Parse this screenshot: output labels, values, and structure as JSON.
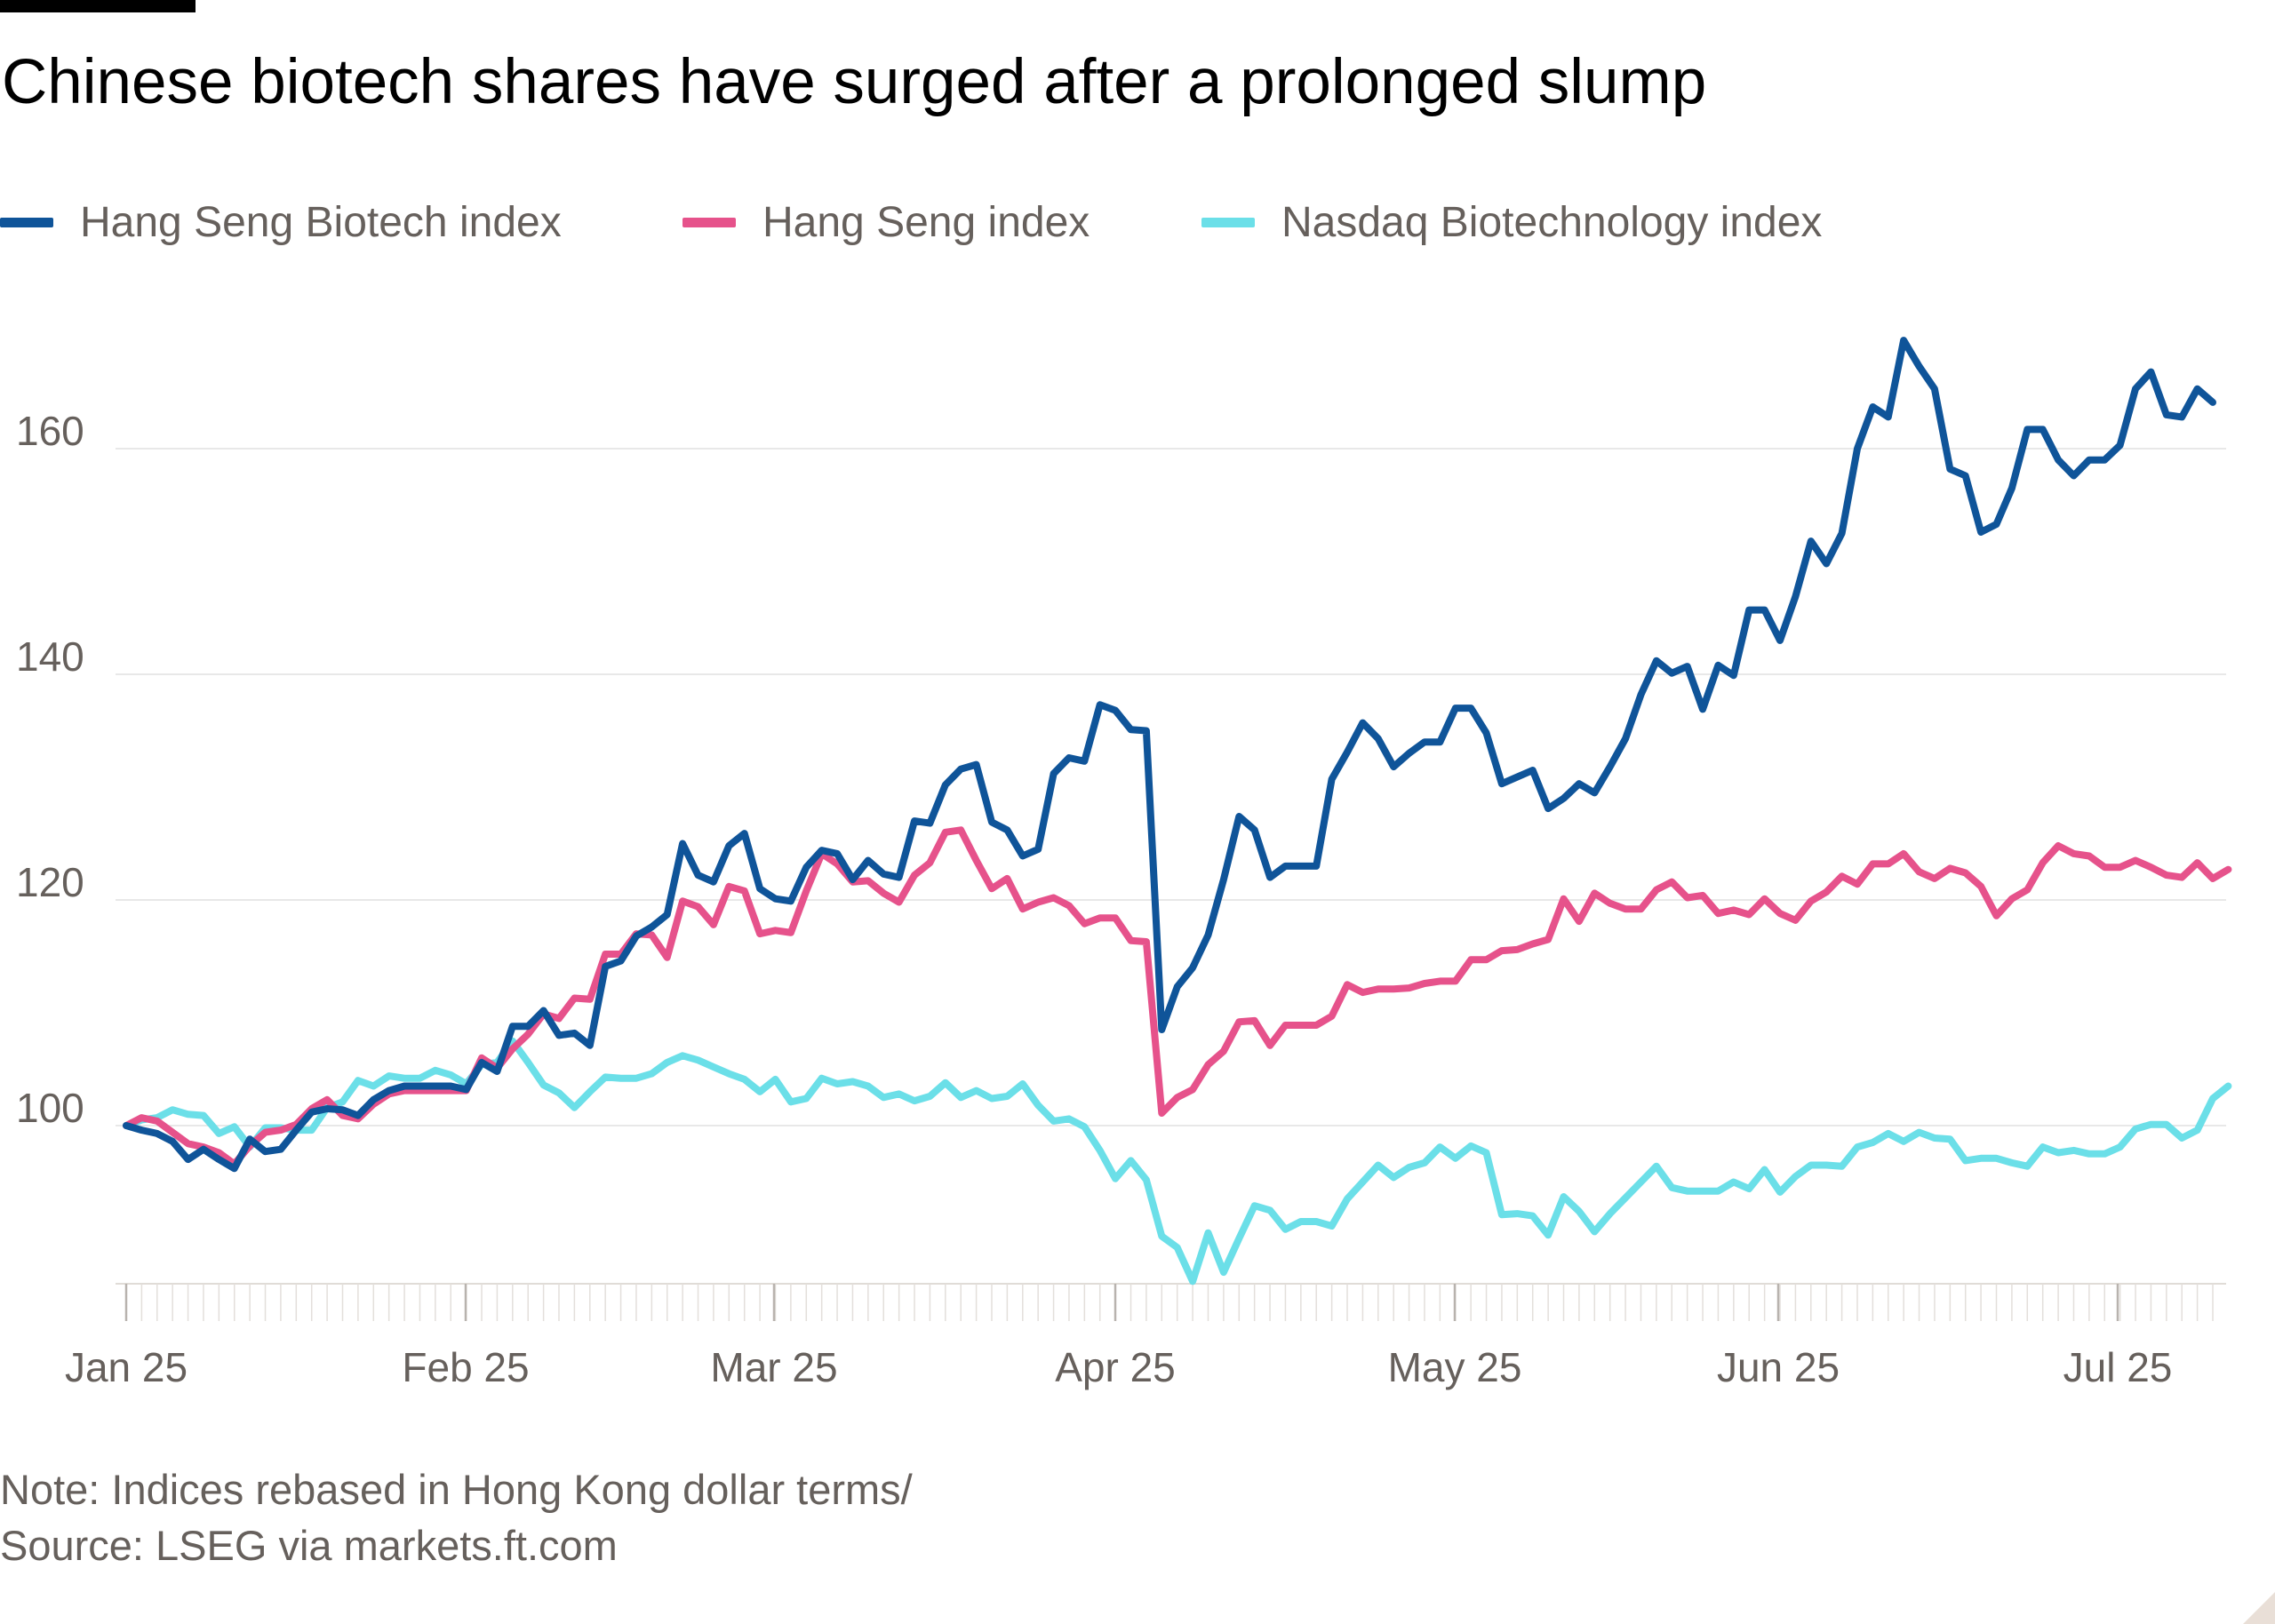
{
  "header": {
    "title": "Chinese biotech shares have surged after a prolonged slump"
  },
  "footer": {
    "note": "Note: Indices rebased in Hong Kong dollar terms/",
    "source": "Source: LSEG via markets.ft.com"
  },
  "chart_data": {
    "type": "line",
    "title": "Chinese biotech shares have surged after a prolonged slump",
    "xlabel": "",
    "ylabel": "",
    "ylim": [
      85,
      172
    ],
    "yticks": [
      100,
      120,
      140,
      160
    ],
    "yticklabels": [
      "100",
      "120",
      "140",
      "160"
    ],
    "xticklabels": [
      "Jan 25",
      "Feb 25",
      "Mar 25",
      "Apr 25",
      "May 25",
      "Jun 25",
      "Jul 25"
    ],
    "grid": true,
    "legend_position": "top-left",
    "series": [
      {
        "name": "Hang Seng Biotech index",
        "color": "#0f5499",
        "values": [
          100,
          99.6,
          99.3,
          98.6,
          97,
          97.9,
          97,
          96.2,
          98.8,
          97.7,
          97.9,
          99.6,
          101.2,
          101.5,
          101.4,
          100.9,
          102.3,
          103.1,
          103.5,
          103.5,
          103.5,
          103.5,
          103.2,
          105.6,
          104.8,
          108.8,
          108.8,
          110.2,
          108,
          108.2,
          107.1,
          114.1,
          114.6,
          116.8,
          117.6,
          118.7,
          125,
          122.2,
          121.6,
          124.8,
          125.9,
          121,
          120.1,
          119.9,
          122.9,
          124.4,
          124.1,
          121.8,
          123.5,
          122.3,
          122,
          127,
          126.8,
          130.2,
          131.6,
          132,
          126.9,
          126.2,
          123.9,
          124.5,
          131.2,
          132.6,
          132.3,
          137.3,
          136.8,
          135.1,
          135,
          108.5,
          112.3,
          114,
          116.9,
          121.8,
          127.4,
          126.2,
          122,
          123,
          123,
          123,
          130.7,
          133.1,
          135.7,
          134.3,
          131.8,
          133,
          134,
          134,
          137,
          137,
          134.8,
          130.3,
          130.9,
          131.5,
          128.1,
          129,
          130.3,
          129.5,
          131.8,
          134.3,
          138.2,
          141.2,
          140.1,
          140.7,
          136.9,
          140.8,
          139.9,
          145.7,
          145.7,
          143,
          146.9,
          151.8,
          149.8,
          152.5,
          160,
          163.7,
          162.8,
          169.6,
          167.3,
          165.3,
          158.2,
          157.6,
          152.6,
          153.3,
          156.5,
          161.7,
          161.7,
          159,
          157.6,
          159,
          159,
          160.3,
          165.3,
          166.8,
          163,
          162.8,
          165.3,
          164.1
        ]
      },
      {
        "name": "Hang Seng index",
        "color": "#e6528b",
        "values": [
          100,
          100.7,
          100.4,
          99.4,
          98.4,
          98.1,
          97.6,
          96.6,
          98.2,
          99.4,
          99.6,
          100.1,
          101.5,
          102.3,
          100.9,
          100.6,
          101.9,
          102.8,
          103.1,
          103.1,
          103.1,
          103.1,
          103.1,
          106,
          105.1,
          106.8,
          108.1,
          109.9,
          109.5,
          111.3,
          111.2,
          115.2,
          115.2,
          117,
          116.9,
          114.9,
          119.9,
          119.4,
          117.8,
          121.2,
          120.8,
          117,
          117.3,
          117.1,
          120.8,
          124.1,
          123.2,
          121.6,
          121.7,
          120.6,
          119.8,
          122.2,
          123.3,
          126,
          126.2,
          123.5,
          121,
          121.9,
          119.2,
          119.8,
          120.2,
          119.5,
          117.9,
          118.4,
          118.4,
          116.4,
          116.3,
          101.1,
          102.5,
          103.2,
          105.4,
          106.6,
          109.2,
          109.3,
          107.1,
          108.9,
          108.9,
          108.9,
          109.7,
          112.5,
          111.8,
          112.1,
          112.1,
          112.2,
          112.6,
          112.8,
          112.8,
          114.7,
          114.7,
          115.5,
          115.6,
          116.1,
          116.5,
          120.1,
          118.1,
          120.6,
          119.7,
          119.2,
          119.2,
          120.9,
          121.6,
          120.2,
          120.4,
          118.8,
          119.1,
          118.7,
          120.1,
          118.8,
          118.2,
          119.9,
          120.7,
          122.1,
          121.4,
          123.2,
          123.2,
          124.1,
          122.5,
          121.9,
          122.8,
          122.4,
          121.2,
          118.6,
          120.1,
          120.9,
          123.3,
          124.8,
          124.1,
          123.9,
          122.9,
          122.9,
          123.5,
          122.9,
          122.2,
          122,
          123.3,
          121.9,
          122.7
        ]
      },
      {
        "name": "Nasdaq Biotechnology index",
        "color": "#6bdfe8",
        "values": [
          100,
          100.5,
          100.7,
          101.4,
          101,
          100.9,
          99.3,
          99.9,
          98.1,
          99.8,
          99.8,
          99.6,
          99.6,
          101.6,
          102.1,
          104,
          103.5,
          104.4,
          104.2,
          104.2,
          104.9,
          104.5,
          103.7,
          105.4,
          105.6,
          107.5,
          105.6,
          103.6,
          102.9,
          101.6,
          103,
          104.3,
          104.2,
          104.2,
          104.6,
          105.6,
          106.2,
          105.8,
          105.2,
          104.6,
          104.1,
          103,
          104.1,
          102.1,
          102.4,
          104.2,
          103.7,
          103.9,
          103.5,
          102.5,
          102.8,
          102.2,
          102.6,
          103.8,
          102.5,
          103.1,
          102.4,
          102.6,
          103.7,
          101.8,
          100.4,
          100.6,
          99.9,
          97.8,
          95.3,
          96.9,
          95.2,
          90.2,
          89.2,
          86.2,
          90.5,
          87,
          90,
          92.9,
          92.5,
          90.8,
          91.5,
          91.5,
          91.1,
          93.5,
          95,
          96.5,
          95.4,
          96.3,
          96.7,
          98.1,
          97.1,
          98.2,
          97.6,
          92.1,
          92.2,
          92,
          90.3,
          93.7,
          92.4,
          90.6,
          92.2,
          93.6,
          95,
          96.4,
          94.5,
          94.2,
          94.2,
          94.2,
          95,
          94.4,
          96.1,
          94.1,
          95.5,
          96.5,
          96.5,
          96.4,
          98.1,
          98.5,
          99.3,
          98.6,
          99.4,
          98.9,
          98.8,
          96.9,
          97.1,
          97.1,
          96.7,
          96.4,
          98.1,
          97.6,
          97.8,
          97.5,
          97.5,
          98.1,
          99.7,
          100.1,
          100.1,
          98.9,
          99.6,
          102.4,
          103.5
        ]
      }
    ]
  }
}
